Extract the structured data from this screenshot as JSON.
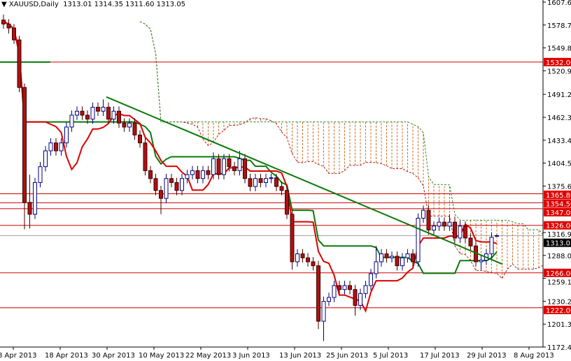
{
  "header": {
    "menu_icon": "triangle-down-icon",
    "symbol": "XAUUSD,Daily",
    "ohlc": "1313.01 1314.35 1311.60 1313.05"
  },
  "chart_data": {
    "type": "candlestick",
    "title": "XAUUSD,Daily",
    "ylim": [
      1172.45,
      1607.65
    ],
    "y_ticks": [
      "1607.65",
      "1578.75",
      "1549.85",
      "1520.95",
      "1491.20",
      "1462.30",
      "1433.40",
      "1404.50",
      "1375.60",
      "1316.95",
      "1288.05",
      "1259.15",
      "1230.25",
      "1201.35",
      "1172.45"
    ],
    "x_ticks": [
      "8 Apr 2013",
      "18 Apr 2013",
      "30 Apr 2013",
      "10 May 2013",
      "22 May 2013",
      "3 Jun 2013",
      "13 Jun 2013",
      "25 Jun 2013",
      "5 Jul 2013",
      "17 Jul 2013",
      "29 Jul 2013",
      "8 Aug 2013"
    ],
    "candles": [
      [
        1585,
        1592,
        1574,
        1580
      ],
      [
        1580,
        1586,
        1568,
        1575
      ],
      [
        1575,
        1580,
        1555,
        1560
      ],
      [
        1560,
        1565,
        1494,
        1500
      ],
      [
        1500,
        1505,
        1321,
        1355
      ],
      [
        1355,
        1390,
        1322,
        1340
      ],
      [
        1340,
        1386,
        1334,
        1380
      ],
      [
        1380,
        1406,
        1374,
        1400
      ],
      [
        1400,
        1426,
        1394,
        1420
      ],
      [
        1420,
        1436,
        1414,
        1430
      ],
      [
        1430,
        1436,
        1414,
        1420
      ],
      [
        1420,
        1436,
        1414,
        1430
      ],
      [
        1430,
        1456,
        1424,
        1450
      ],
      [
        1450,
        1471,
        1444,
        1465
      ],
      [
        1465,
        1476,
        1459,
        1470
      ],
      [
        1470,
        1476,
        1459,
        1465
      ],
      [
        1465,
        1471,
        1454,
        1460
      ],
      [
        1460,
        1481,
        1454,
        1475
      ],
      [
        1475,
        1481,
        1464,
        1470
      ],
      [
        1470,
        1485,
        1464,
        1475
      ],
      [
        1475,
        1481,
        1454,
        1460
      ],
      [
        1460,
        1476,
        1454,
        1470
      ],
      [
        1470,
        1476,
        1449,
        1455
      ],
      [
        1455,
        1461,
        1444,
        1450
      ],
      [
        1450,
        1461,
        1444,
        1455
      ],
      [
        1455,
        1461,
        1434,
        1440
      ],
      [
        1440,
        1446,
        1424,
        1430
      ],
      [
        1430,
        1436,
        1389,
        1395
      ],
      [
        1395,
        1401,
        1379,
        1385
      ],
      [
        1385,
        1391,
        1364,
        1370
      ],
      [
        1370,
        1376,
        1340,
        1360
      ],
      [
        1360,
        1391,
        1354,
        1385
      ],
      [
        1385,
        1391,
        1374,
        1380
      ],
      [
        1380,
        1386,
        1364,
        1370
      ],
      [
        1370,
        1391,
        1364,
        1385
      ],
      [
        1385,
        1396,
        1379,
        1390
      ],
      [
        1390,
        1401,
        1384,
        1395
      ],
      [
        1395,
        1401,
        1379,
        1385
      ],
      [
        1385,
        1401,
        1379,
        1395
      ],
      [
        1395,
        1401,
        1384,
        1390
      ],
      [
        1390,
        1418,
        1384,
        1410
      ],
      [
        1410,
        1416,
        1384,
        1390
      ],
      [
        1390,
        1416,
        1384,
        1410
      ],
      [
        1410,
        1416,
        1394,
        1400
      ],
      [
        1400,
        1406,
        1389,
        1395
      ],
      [
        1395,
        1420,
        1389,
        1410
      ],
      [
        1410,
        1416,
        1379,
        1385
      ],
      [
        1385,
        1391,
        1369,
        1375
      ],
      [
        1375,
        1391,
        1369,
        1385
      ],
      [
        1385,
        1391,
        1374,
        1380
      ],
      [
        1380,
        1391,
        1374,
        1385
      ],
      [
        1385,
        1391,
        1379,
        1386
      ],
      [
        1386,
        1391,
        1369,
        1375
      ],
      [
        1375,
        1381,
        1364,
        1370
      ],
      [
        1370,
        1376,
        1334,
        1340
      ],
      [
        1340,
        1346,
        1270,
        1280
      ],
      [
        1280,
        1296,
        1274,
        1290
      ],
      [
        1290,
        1296,
        1279,
        1285
      ],
      [
        1285,
        1291,
        1274,
        1280
      ],
      [
        1280,
        1286,
        1269,
        1275
      ],
      [
        1275,
        1281,
        1195,
        1205
      ],
      [
        1205,
        1236,
        1180,
        1230
      ],
      [
        1230,
        1241,
        1224,
        1235
      ],
      [
        1235,
        1256,
        1229,
        1250
      ],
      [
        1250,
        1256,
        1239,
        1245
      ],
      [
        1245,
        1256,
        1239,
        1250
      ],
      [
        1250,
        1256,
        1239,
        1245
      ],
      [
        1245,
        1251,
        1212,
        1225
      ],
      [
        1225,
        1246,
        1219,
        1240
      ],
      [
        1240,
        1256,
        1234,
        1250
      ],
      [
        1250,
        1271,
        1244,
        1265
      ],
      [
        1265,
        1300,
        1259,
        1280
      ],
      [
        1280,
        1296,
        1274,
        1290
      ],
      [
        1290,
        1296,
        1279,
        1285
      ],
      [
        1285,
        1293,
        1279,
        1287
      ],
      [
        1287,
        1293,
        1269,
        1275
      ],
      [
        1275,
        1291,
        1269,
        1285
      ],
      [
        1285,
        1296,
        1279,
        1290
      ],
      [
        1290,
        1296,
        1274,
        1280
      ],
      [
        1280,
        1341,
        1274,
        1335
      ],
      [
        1335,
        1351,
        1329,
        1345
      ],
      [
        1345,
        1351,
        1314,
        1320
      ],
      [
        1320,
        1331,
        1314,
        1325
      ],
      [
        1325,
        1336,
        1319,
        1330
      ],
      [
        1330,
        1336,
        1319,
        1325
      ],
      [
        1325,
        1340,
        1319,
        1330
      ],
      [
        1330,
        1336,
        1304,
        1310
      ],
      [
        1310,
        1331,
        1304,
        1325
      ],
      [
        1325,
        1331,
        1304,
        1310
      ],
      [
        1310,
        1316,
        1294,
        1300
      ],
      [
        1300,
        1306,
        1274,
        1280
      ],
      [
        1280,
        1288,
        1270,
        1282
      ],
      [
        1282,
        1296,
        1276,
        1290
      ],
      [
        1290,
        1317,
        1284,
        1311
      ],
      [
        1313.01,
        1314.35,
        1311.6,
        1313.05
      ]
    ],
    "levels": [
      "1532.00",
      "1365.80",
      "1354.50",
      "1347.00",
      "1326.00",
      "1266.00",
      "1222.00"
    ],
    "current_price": "1313.05",
    "indicators": [
      "ichimoku tenkan (red)",
      "ichimoku kijun (green)",
      "ichimoku cloud (hatched)"
    ],
    "trendline": {
      "from": [
        "30 Apr 2013",
        1488
      ],
      "to": [
        "8 Aug 2013",
        1277
      ]
    },
    "support_line": {
      "value": 1532,
      "span": [
        "8 Apr 2013",
        "18 Apr 2013"
      ]
    },
    "colors": {
      "bull_outline": "#000080",
      "bull_body": "#ffffff",
      "bear_body": "#b01010",
      "tenkan": "#dd0000",
      "kijun": "#0a7a0a",
      "cloud": "#d2691e",
      "level": "#cc0000",
      "level_label": "#e00000",
      "price_label": "#000000",
      "axis": "#000000"
    },
    "grid": false
  }
}
